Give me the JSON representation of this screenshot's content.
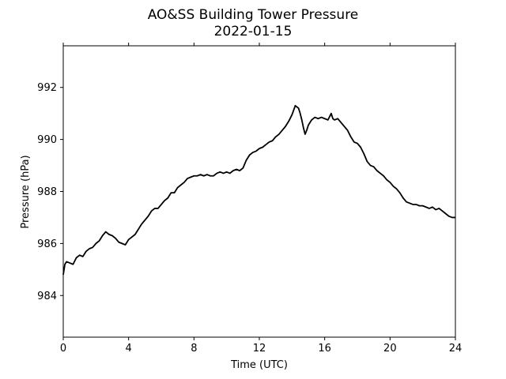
{
  "chart_data": {
    "type": "line",
    "title": "AO&SS Building Tower Pressure",
    "subtitle": "2022-01-15",
    "xlabel": "Time (UTC)",
    "ylabel": "Pressure (hPa)",
    "xlim": [
      0,
      24
    ],
    "ylim": [
      982.4,
      993.6
    ],
    "x_ticks": [
      0,
      4,
      8,
      12,
      16,
      20,
      24
    ],
    "y_ticks": [
      984,
      986,
      988,
      990,
      992
    ],
    "grid": false,
    "legend": "none",
    "line_color": "#000000",
    "series": [
      {
        "x": [
          0.0,
          0.1,
          0.2,
          0.4,
          0.6,
          0.8,
          1.0,
          1.2,
          1.4,
          1.6,
          1.8,
          2.0,
          2.2,
          2.4,
          2.6,
          2.8,
          3.0,
          3.2,
          3.4,
          3.6,
          3.8,
          4.0,
          4.2,
          4.4,
          4.6,
          4.8,
          5.0,
          5.2,
          5.4,
          5.6,
          5.8,
          6.0,
          6.2,
          6.4,
          6.6,
          6.8,
          7.0,
          7.2,
          7.4,
          7.6,
          7.8,
          8.0,
          8.2,
          8.4,
          8.6,
          8.8,
          9.0,
          9.2,
          9.4,
          9.6,
          9.8,
          10.0,
          10.2,
          10.4,
          10.6,
          10.8,
          11.0,
          11.2,
          11.4,
          11.6,
          11.8,
          12.0,
          12.2,
          12.4,
          12.6,
          12.8,
          13.0,
          13.2,
          13.4,
          13.6,
          13.8,
          14.0,
          14.2,
          14.4,
          14.5,
          14.6,
          14.7,
          14.8,
          14.9,
          15.0,
          15.2,
          15.4,
          15.6,
          15.8,
          16.0,
          16.2,
          16.4,
          16.5,
          16.6,
          16.8,
          17.0,
          17.2,
          17.4,
          17.6,
          17.8,
          18.0,
          18.2,
          18.4,
          18.6,
          18.8,
          19.0,
          19.2,
          19.4,
          19.6,
          19.8,
          20.0,
          20.2,
          20.4,
          20.6,
          20.8,
          21.0,
          21.2,
          21.4,
          21.6,
          21.8,
          22.0,
          22.2,
          22.4,
          22.6,
          22.8,
          23.0,
          23.2,
          23.4,
          23.6,
          23.8,
          24.0
        ],
        "y": [
          984.8,
          985.2,
          985.3,
          985.25,
          985.2,
          985.45,
          985.55,
          985.5,
          985.7,
          985.8,
          985.85,
          986.0,
          986.1,
          986.3,
          986.45,
          986.35,
          986.3,
          986.2,
          986.05,
          986.0,
          985.95,
          986.15,
          986.25,
          986.35,
          986.55,
          986.75,
          986.9,
          987.05,
          987.25,
          987.35,
          987.35,
          987.5,
          987.65,
          987.75,
          987.95,
          987.95,
          988.15,
          988.25,
          988.35,
          988.5,
          988.55,
          988.6,
          988.6,
          988.65,
          988.6,
          988.65,
          988.6,
          988.6,
          988.7,
          988.75,
          988.7,
          988.75,
          988.7,
          988.8,
          988.85,
          988.8,
          988.9,
          989.2,
          989.4,
          989.5,
          989.55,
          989.65,
          989.7,
          989.8,
          989.9,
          989.95,
          990.1,
          990.2,
          990.35,
          990.5,
          990.7,
          990.95,
          991.3,
          991.2,
          991.0,
          990.75,
          990.45,
          990.2,
          990.35,
          990.55,
          990.75,
          990.85,
          990.8,
          990.85,
          990.8,
          990.75,
          991.0,
          990.8,
          990.75,
          990.8,
          990.65,
          990.5,
          990.35,
          990.1,
          989.9,
          989.85,
          989.7,
          989.45,
          989.15,
          989.0,
          988.95,
          988.8,
          988.7,
          988.6,
          988.45,
          988.35,
          988.2,
          988.1,
          987.95,
          987.75,
          987.6,
          987.55,
          987.5,
          987.5,
          987.45,
          987.45,
          987.4,
          987.35,
          987.4,
          987.3,
          987.35,
          987.25,
          987.15,
          987.05,
          987.0,
          987.0
        ]
      }
    ]
  }
}
